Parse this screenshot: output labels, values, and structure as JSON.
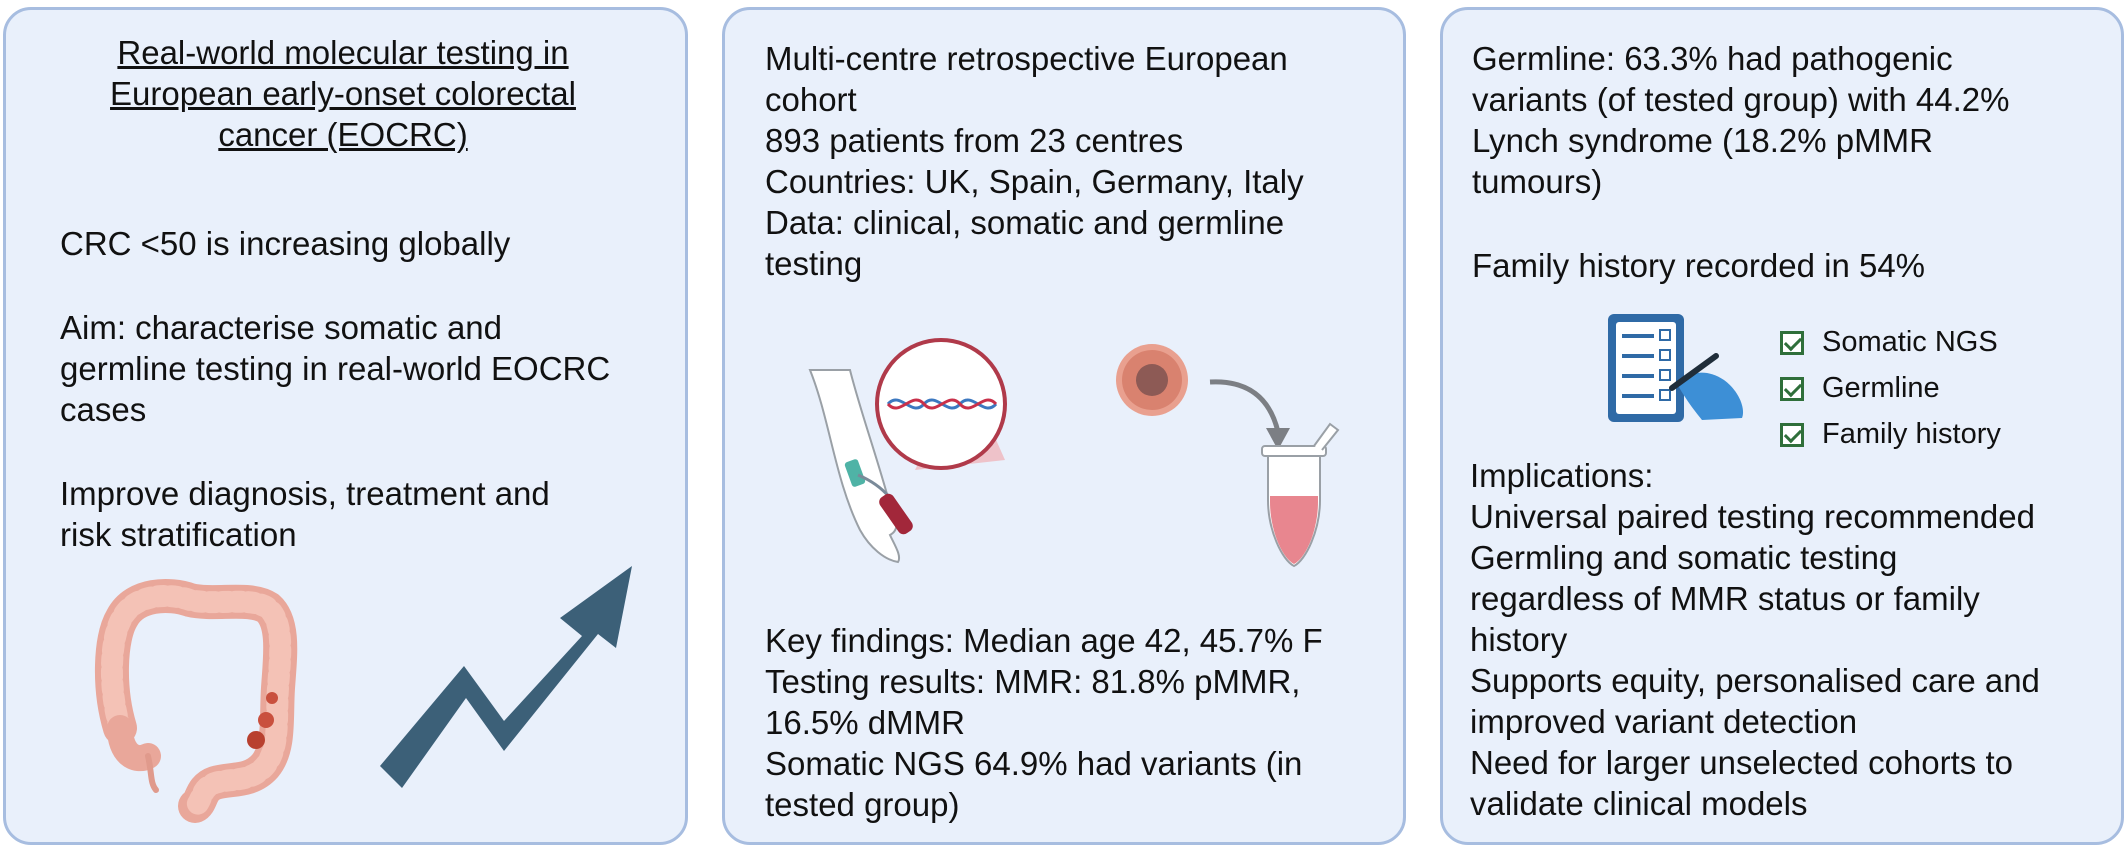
{
  "panel1": {
    "title_lines": [
      "Real-world molecular testing in",
      "European early-onset colorectal",
      "cancer (EOCRC)"
    ],
    "point1": "CRC <50 is increasing globally",
    "aim_lines": [
      "Aim: characterise somatic and",
      "germline testing in real-world EOCRC",
      "cases"
    ],
    "improve_lines": [
      "Improve diagnosis, treatment and",
      "risk stratification"
    ]
  },
  "panel2": {
    "design_lines": [
      "Multi-centre retrospective European",
      "cohort",
      "893 patients from 23 centres",
      "Countries: UK, Spain, Germany, Italy",
      "Data: clinical, somatic and germline",
      "testing"
    ],
    "findings_lines": [
      "Key findings: Median age 42, 45.7% F",
      "Testing results: MMR: 81.8% pMMR,",
      "16.5% dMMR",
      "Somatic NGS 64.9% had variants (in",
      "tested group)"
    ]
  },
  "panel3": {
    "germline_lines": [
      "Germline: 63.3% had pathogenic",
      "variants (of tested group) with 44.2%",
      "Lynch syndrome (18.2% pMMR",
      "tumours)"
    ],
    "family_history": "Family history recorded in 54%",
    "checklist": [
      "Somatic NGS",
      "Germline",
      "Family history"
    ],
    "implications_lines": [
      "Implications:",
      "Universal paired testing recommended",
      "Germling and somatic testing",
      "regardless of MMR status or family",
      "history",
      "Supports equity, personalised care and",
      "improved variant detection",
      "Need for larger unselected cohorts to",
      "validate clinical models"
    ]
  },
  "colors": {
    "panel_fill": "#e9f0fb",
    "panel_border": "#a7bde0",
    "arrow": "#3c6078",
    "check": "#2f6f3a",
    "clipboard": "#2f6aa6"
  },
  "icons": [
    "colon-icon",
    "trend-arrow-icon",
    "arm-blood-draw-icon",
    "dna-icon",
    "tumour-cell-icon",
    "sample-tube-icon",
    "clipboard-checklist-icon",
    "checkbox-icon"
  ]
}
